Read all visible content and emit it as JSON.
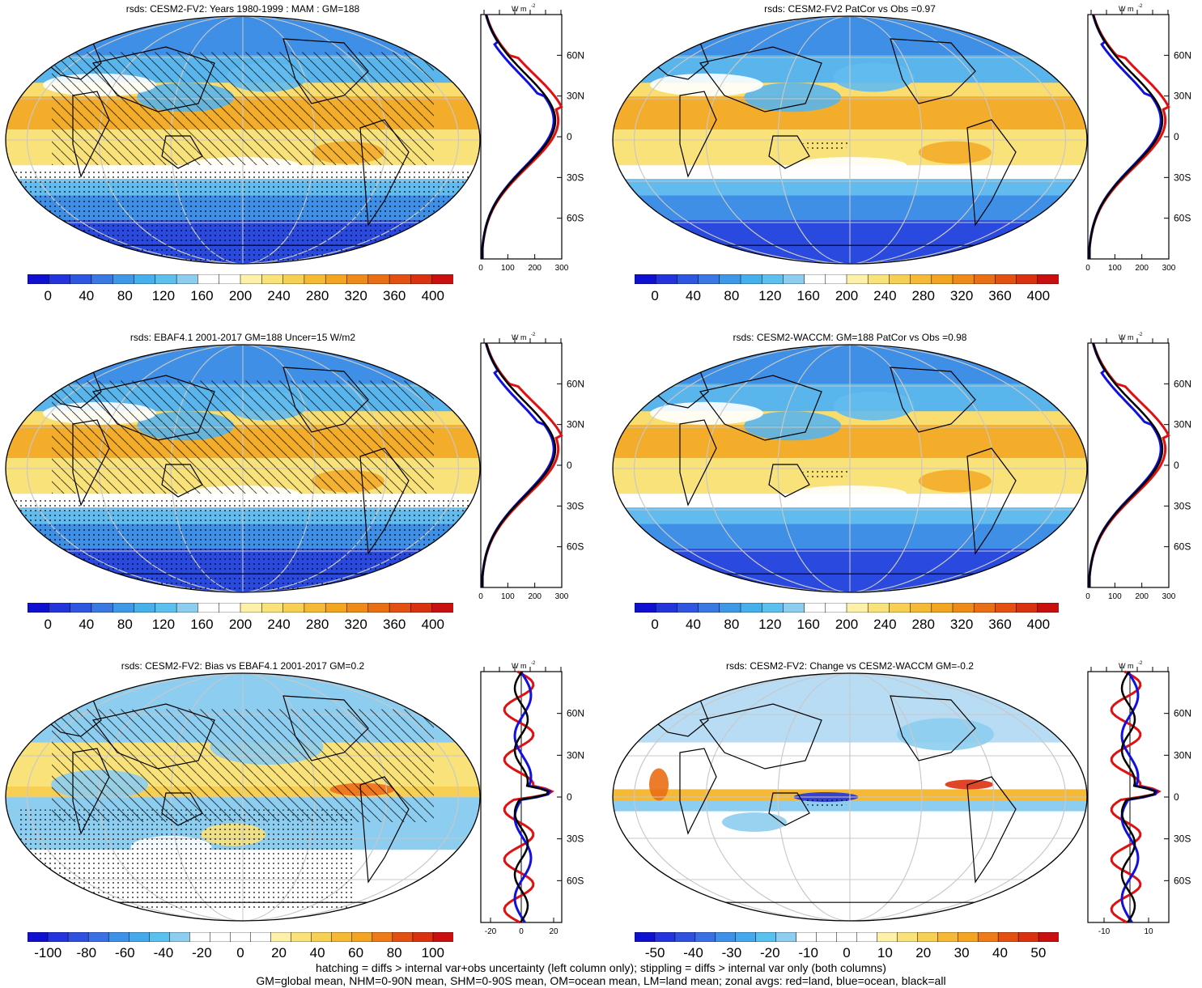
{
  "footer": {
    "line1": "hatching = diffs > internal var+obs uncertainty (left column only); stippling = diffs > internal var only (both columns)",
    "line2": "GM=global mean, NHM=0-90N mean, SHM=0-90S mean, OM=ocean mean, LM=land mean; zonal avgs: red=land, blue=ocean, black=all"
  },
  "colors": {
    "blue_dark": "#2020d8",
    "blue_mid": "#3a8fe0",
    "blue_light": "#8cc6ee",
    "white": "#ffffff",
    "yellow": "#f8e27a",
    "orange": "#f6a623",
    "orange_dark": "#ee6e1a",
    "red": "#d01818"
  },
  "panels": [
    {
      "id": "p1",
      "title": "rsds: CESM2-FV2: Years 1980-1999 : MAM : GM=188",
      "unit": "W m-2",
      "lat_labels": [
        "60N",
        "30N",
        "0",
        "30S",
        "60S"
      ],
      "profile_ticks": [
        "0",
        "100",
        "200",
        "300"
      ],
      "colorbar": [
        "0",
        "40",
        "80",
        "120",
        "160",
        "200",
        "240",
        "280",
        "320",
        "360",
        "400"
      ],
      "kind": "abs",
      "hatch": true,
      "stipple": true
    },
    {
      "id": "p2",
      "title": "rsds: CESM2-FV2 PatCor vs Obs =0.97",
      "unit": "W m-2",
      "lat_labels": [
        "60N",
        "30N",
        "0",
        "30S",
        "60S"
      ],
      "profile_ticks": [
        "0",
        "100",
        "200",
        "300"
      ],
      "colorbar": [
        "0",
        "40",
        "80",
        "120",
        "160",
        "200",
        "240",
        "280",
        "320",
        "360",
        "400"
      ],
      "kind": "abs",
      "hatch": false,
      "stipple": true
    },
    {
      "id": "p3",
      "title": "rsds: EBAF4.1 2001-2017 GM=188 Uncer=15 W/m2",
      "unit": "W m-2",
      "lat_labels": [
        "60N",
        "30N",
        "0",
        "30S",
        "60S"
      ],
      "profile_ticks": [
        "0",
        "100",
        "200",
        "300"
      ],
      "colorbar": [
        "0",
        "40",
        "80",
        "120",
        "160",
        "200",
        "240",
        "280",
        "320",
        "360",
        "400"
      ],
      "kind": "abs",
      "hatch": true,
      "stipple": true
    },
    {
      "id": "p4",
      "title": "rsds: CESM2-WACCM: GM=188 PatCor vs Obs =0.98",
      "unit": "W m-2",
      "lat_labels": [
        "60N",
        "30N",
        "0",
        "30S",
        "60S"
      ],
      "profile_ticks": [
        "0",
        "100",
        "200",
        "300"
      ],
      "colorbar": [
        "0",
        "40",
        "80",
        "120",
        "160",
        "200",
        "240",
        "280",
        "320",
        "360",
        "400"
      ],
      "kind": "abs",
      "hatch": false,
      "stipple": true
    },
    {
      "id": "p5",
      "title": "rsds: CESM2-FV2: Bias vs EBAF4.1 2001-2017 GM=0.2",
      "unit": "W m-2",
      "lat_labels": [
        "60N",
        "30N",
        "0",
        "30S",
        "60S"
      ],
      "profile_ticks": [
        "-20",
        "0",
        "20"
      ],
      "colorbar": [
        "-100",
        "-80",
        "-60",
        "-40",
        "-20",
        "0",
        "20",
        "40",
        "60",
        "80",
        "100"
      ],
      "kind": "diff",
      "hatch": true,
      "stipple": true
    },
    {
      "id": "p6",
      "title": "rsds: CESM2-FV2: Change vs CESM2-WACCM GM=-0.2",
      "unit": "W m-2",
      "lat_labels": [
        "60N",
        "30N",
        "0",
        "30S",
        "60S"
      ],
      "profile_ticks": [
        "-10",
        "10"
      ],
      "colorbar": [
        "-50",
        "-40",
        "-30",
        "-20",
        "-10",
        "0",
        "10",
        "20",
        "30",
        "40",
        "50"
      ],
      "kind": "diff2",
      "hatch": false,
      "stipple": true
    }
  ]
}
